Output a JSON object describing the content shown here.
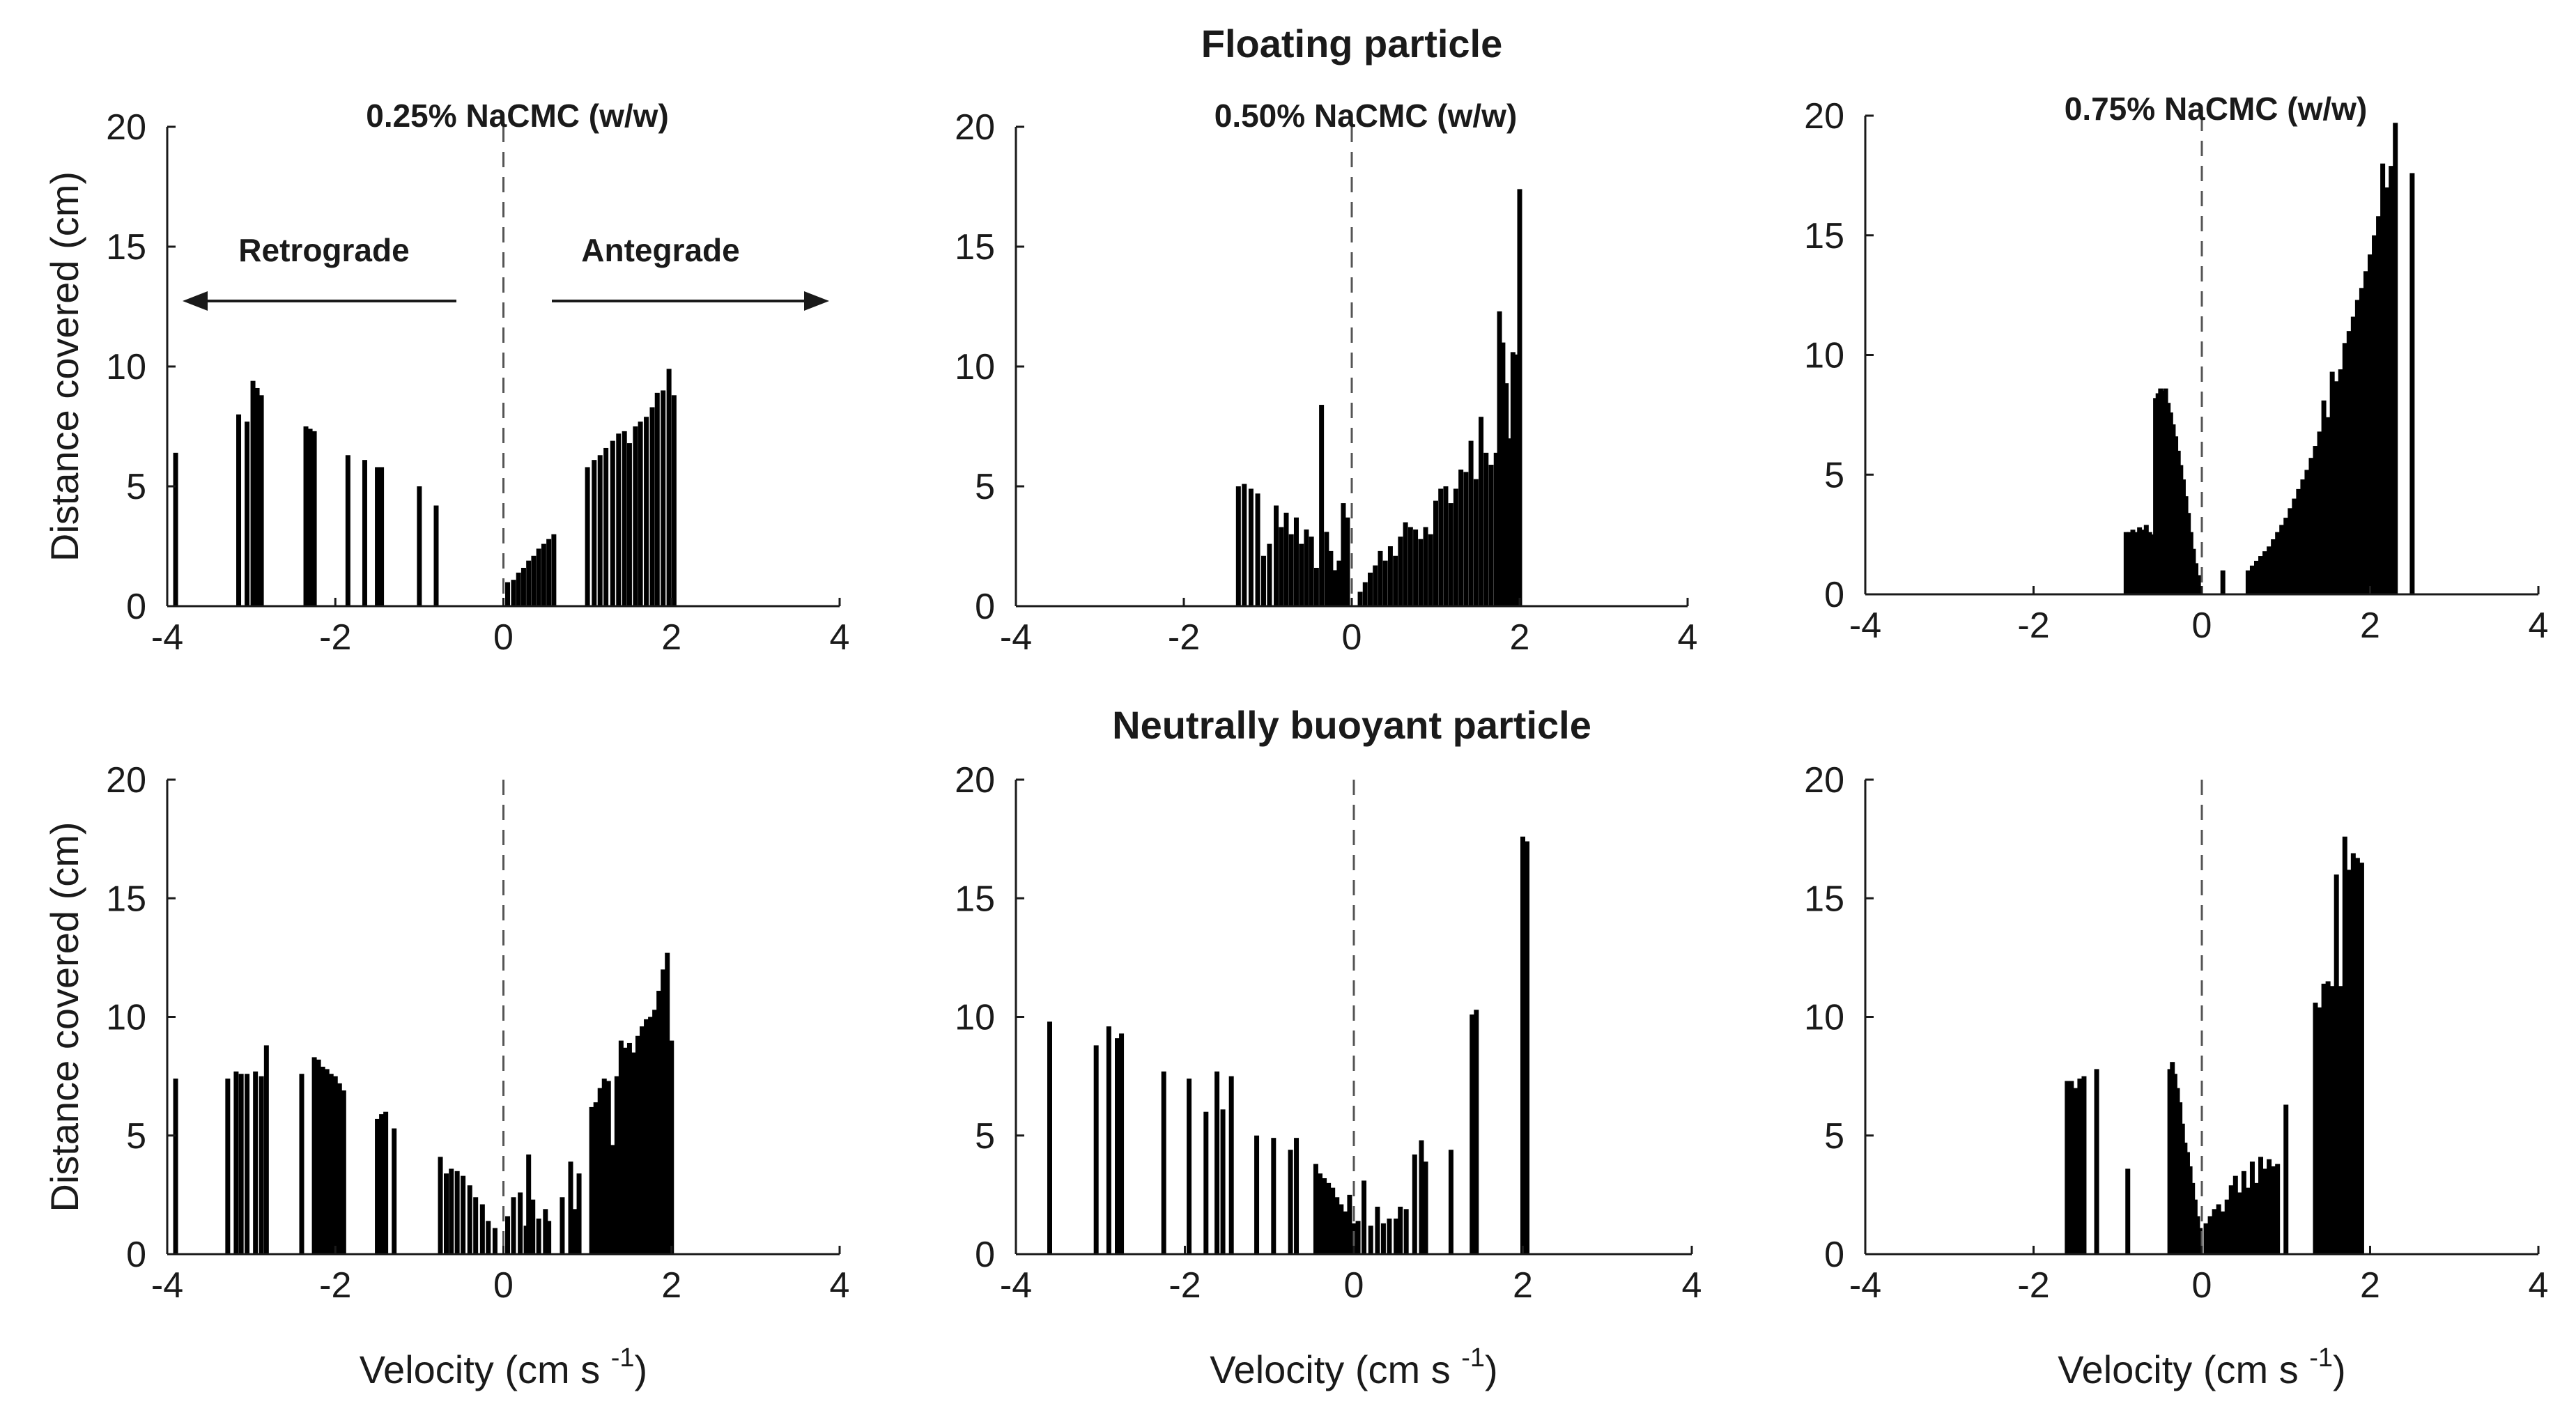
{
  "figure": {
    "row_titles": [
      "Floating particle",
      "Neutrally buoyant particle"
    ],
    "annotations": {
      "retrograde": "Retrograde",
      "antegrade": "Antegrade"
    },
    "xlabel_main": "Velocity (cm s",
    "xlabel_sup": "-1",
    "xlabel_close": ")",
    "colors": {
      "bar": "#000000",
      "axis": "#1a1a1a",
      "zero_line": "#555555"
    }
  },
  "chart_data": [
    {
      "type": "bar",
      "panel": "top-left",
      "title": "0.25% NaCMC (w/w)",
      "xlabel": "",
      "ylabel": "Distance covered (cm)",
      "xlim": [
        -4,
        4
      ],
      "ylim": [
        0,
        20
      ],
      "xticks": [
        -4,
        -2,
        0,
        2,
        4
      ],
      "yticks": [
        0,
        5,
        10,
        15,
        20
      ],
      "x": [
        -3.9,
        -3.15,
        -3.05,
        -2.98,
        -2.93,
        -2.88,
        -2.35,
        -2.3,
        -2.25,
        -1.85,
        -1.65,
        -1.5,
        -1.45,
        -1.0,
        -0.8,
        0.05,
        0.12,
        0.18,
        0.24,
        0.3,
        0.36,
        0.42,
        0.48,
        0.54,
        0.6,
        1.0,
        1.08,
        1.15,
        1.22,
        1.3,
        1.37,
        1.44,
        1.5,
        1.57,
        1.63,
        1.7,
        1.77,
        1.83,
        1.9,
        1.97,
        2.03
      ],
      "values": [
        6.4,
        8.0,
        7.7,
        9.4,
        9.1,
        8.8,
        7.5,
        7.4,
        7.3,
        6.3,
        6.1,
        5.8,
        5.8,
        5.0,
        4.2,
        1.0,
        1.1,
        1.4,
        1.6,
        1.9,
        2.1,
        2.4,
        2.6,
        2.8,
        3.0,
        5.8,
        6.1,
        6.3,
        6.6,
        6.9,
        7.2,
        7.3,
        6.8,
        7.5,
        7.7,
        7.9,
        8.3,
        8.9,
        9.0,
        9.9,
        8.8
      ]
    },
    {
      "type": "bar",
      "panel": "top-middle",
      "title": "0.50% NaCMC (w/w)",
      "xlabel": "",
      "ylabel": "",
      "xlim": [
        -4,
        4
      ],
      "ylim": [
        0,
        20
      ],
      "xticks": [
        -4,
        -2,
        0,
        2,
        4
      ],
      "yticks": [
        0,
        5,
        10,
        15,
        20
      ],
      "x": [
        -1.35,
        -1.28,
        -1.2,
        -1.12,
        -1.05,
        -0.98,
        -0.9,
        -0.84,
        -0.78,
        -0.72,
        -0.66,
        -0.6,
        -0.54,
        -0.48,
        -0.42,
        -0.36,
        -0.3,
        -0.25,
        -0.2,
        -0.15,
        -0.1,
        -0.05,
        0.1,
        0.16,
        0.22,
        0.28,
        0.34,
        0.4,
        0.46,
        0.52,
        0.58,
        0.64,
        0.7,
        0.76,
        0.82,
        0.88,
        0.94,
        1.0,
        1.06,
        1.12,
        1.18,
        1.24,
        1.3,
        1.36,
        1.42,
        1.48,
        1.54,
        1.6,
        1.66,
        1.72,
        1.76,
        1.8,
        1.84,
        1.88,
        1.92,
        1.96,
        2.0
      ],
      "values": [
        5.0,
        5.1,
        4.9,
        4.7,
        2.1,
        2.6,
        4.2,
        3.3,
        3.9,
        3.0,
        3.7,
        2.6,
        3.2,
        2.9,
        1.6,
        8.4,
        3.1,
        2.3,
        1.5,
        1.9,
        4.3,
        3.7,
        0.6,
        1.0,
        1.4,
        1.7,
        2.3,
        1.9,
        2.5,
        2.1,
        2.9,
        3.5,
        3.3,
        3.2,
        2.8,
        3.3,
        3.0,
        4.4,
        4.9,
        5.0,
        4.3,
        4.9,
        5.7,
        5.6,
        6.9,
        5.3,
        7.9,
        6.4,
        5.9,
        6.4,
        12.3,
        11.0,
        9.3,
        7.0,
        10.6,
        10.5,
        17.4
      ]
    },
    {
      "type": "bar",
      "panel": "top-right",
      "title": "0.75% NaCMC (w/w)",
      "xlabel": "",
      "ylabel": "",
      "xlim": [
        -4,
        4
      ],
      "ylim": [
        0,
        20
      ],
      "xticks": [
        -4,
        -2,
        0,
        2,
        4
      ],
      "yticks": [
        0,
        5,
        10,
        15,
        20
      ],
      "x": [
        -0.9,
        -0.86,
        -0.82,
        -0.78,
        -0.74,
        -0.7,
        -0.66,
        -0.62,
        -0.58,
        -0.55,
        -0.52,
        -0.49,
        -0.46,
        -0.43,
        -0.4,
        -0.37,
        -0.34,
        -0.31,
        -0.28,
        -0.25,
        -0.22,
        -0.19,
        -0.16,
        -0.13,
        -0.1,
        -0.07,
        -0.04,
        0.25,
        0.55,
        0.6,
        0.65,
        0.7,
        0.75,
        0.8,
        0.85,
        0.9,
        0.95,
        1.0,
        1.05,
        1.1,
        1.15,
        1.2,
        1.25,
        1.3,
        1.35,
        1.4,
        1.45,
        1.5,
        1.55,
        1.6,
        1.65,
        1.7,
        1.75,
        1.8,
        1.85,
        1.9,
        1.95,
        2.0,
        2.05,
        2.1,
        2.15,
        2.2,
        2.25,
        2.3,
        2.5
      ],
      "values": [
        2.6,
        2.6,
        2.7,
        2.6,
        2.8,
        2.7,
        2.9,
        2.6,
        2.5,
        8.2,
        8.4,
        8.6,
        8.5,
        8.6,
        8.0,
        7.6,
        7.1,
        6.6,
        6.0,
        5.4,
        4.8,
        4.1,
        3.4,
        2.6,
        1.9,
        1.3,
        0.8,
        1.0,
        1.0,
        1.2,
        1.4,
        1.6,
        1.8,
        2.0,
        2.3,
        2.6,
        2.9,
        3.2,
        3.6,
        4.0,
        4.4,
        4.8,
        5.2,
        5.7,
        6.2,
        6.8,
        8.1,
        7.4,
        9.3,
        8.9,
        9.4,
        10.5,
        11.0,
        11.6,
        12.3,
        12.8,
        13.5,
        14.2,
        15.0,
        15.8,
        18.0,
        17.0,
        17.9,
        19.7,
        17.6
      ]
    },
    {
      "type": "bar",
      "panel": "bottom-left",
      "title": "",
      "xlabel": "Velocity (cm s-1)",
      "ylabel": "Distance covered (cm)",
      "xlim": [
        -4,
        4
      ],
      "ylim": [
        0,
        20
      ],
      "xticks": [
        -4,
        -2,
        0,
        2,
        4
      ],
      "yticks": [
        0,
        5,
        10,
        15,
        20
      ],
      "x": [
        -3.9,
        -3.28,
        -3.18,
        -3.12,
        -3.05,
        -2.95,
        -2.88,
        -2.82,
        -2.4,
        -2.25,
        -2.2,
        -2.15,
        -2.1,
        -2.05,
        -2.0,
        -1.95,
        -1.9,
        -1.5,
        -1.45,
        -1.4,
        -1.3,
        -0.75,
        -0.68,
        -0.62,
        -0.55,
        -0.48,
        -0.4,
        -0.33,
        -0.25,
        -0.18,
        -0.1,
        0.05,
        0.12,
        0.2,
        0.27,
        0.3,
        0.35,
        0.42,
        0.5,
        0.54,
        0.7,
        0.8,
        0.85,
        0.9,
        1.05,
        1.1,
        1.15,
        1.2,
        1.25,
        1.3,
        1.35,
        1.4,
        1.45,
        1.5,
        1.55,
        1.6,
        1.65,
        1.7,
        1.75,
        1.8,
        1.85,
        1.9,
        1.95,
        2.0
      ],
      "values": [
        7.4,
        7.4,
        7.7,
        7.6,
        7.6,
        7.7,
        7.5,
        8.8,
        7.6,
        8.3,
        8.2,
        7.9,
        7.8,
        7.6,
        7.5,
        7.2,
        6.9,
        5.7,
        5.9,
        6.0,
        5.3,
        4.1,
        3.4,
        3.6,
        3.5,
        3.3,
        2.9,
        2.4,
        2.1,
        1.4,
        1.1,
        1.6,
        2.4,
        2.6,
        1.2,
        4.2,
        2.3,
        1.5,
        1.9,
        1.4,
        2.4,
        3.9,
        1.9,
        3.4,
        6.2,
        6.4,
        7.0,
        7.4,
        7.3,
        4.6,
        7.5,
        9.0,
        8.7,
        8.9,
        8.5,
        9.2,
        9.6,
        9.9,
        10.0,
        10.3,
        11.1,
        12.0,
        12.7,
        9.0
      ]
    },
    {
      "type": "bar",
      "panel": "bottom-middle",
      "title": "",
      "xlabel": "Velocity (cm s-1)",
      "ylabel": "",
      "xlim": [
        -4,
        4
      ],
      "ylim": [
        0,
        20
      ],
      "xticks": [
        -4,
        -2,
        0,
        2,
        4
      ],
      "yticks": [
        0,
        5,
        10,
        15,
        20
      ],
      "x": [
        -3.6,
        -3.05,
        -2.9,
        -2.8,
        -2.75,
        -2.25,
        -1.95,
        -1.75,
        -1.62,
        -1.55,
        -1.45,
        -1.15,
        -0.95,
        -0.75,
        -0.68,
        -0.45,
        -0.4,
        -0.35,
        -0.3,
        -0.25,
        -0.2,
        -0.15,
        -0.1,
        -0.05,
        0.0,
        0.05,
        0.12,
        0.2,
        0.28,
        0.35,
        0.42,
        0.5,
        0.55,
        0.62,
        0.72,
        0.8,
        0.85,
        1.15,
        1.4,
        1.45,
        2.0,
        2.05
      ],
      "values": [
        9.8,
        8.8,
        9.6,
        9.1,
        9.3,
        7.7,
        7.4,
        6.0,
        7.7,
        6.1,
        7.5,
        5.0,
        4.9,
        4.4,
        4.9,
        3.8,
        3.4,
        3.2,
        3.0,
        2.8,
        2.4,
        2.1,
        1.8,
        2.5,
        1.3,
        1.4,
        3.1,
        1.2,
        2.0,
        1.3,
        1.5,
        1.5,
        2.0,
        1.9,
        4.2,
        4.8,
        3.9,
        4.4,
        10.1,
        10.3,
        17.6,
        17.4
      ]
    },
    {
      "type": "bar",
      "panel": "bottom-right",
      "title": "",
      "xlabel": "Velocity (cm s-1)",
      "ylabel": "",
      "xlim": [
        -4,
        4
      ],
      "ylim": [
        0,
        20
      ],
      "xticks": [
        -4,
        -2,
        0,
        2,
        4
      ],
      "yticks": [
        0,
        5,
        10,
        15,
        20
      ],
      "x": [
        -1.6,
        -1.55,
        -1.5,
        -1.45,
        -1.4,
        -1.25,
        -0.88,
        -0.38,
        -0.35,
        -0.32,
        -0.29,
        -0.26,
        -0.23,
        -0.2,
        -0.17,
        -0.14,
        -0.11,
        -0.08,
        -0.05,
        -0.02,
        0.05,
        0.1,
        0.15,
        0.2,
        0.25,
        0.3,
        0.35,
        0.4,
        0.45,
        0.5,
        0.55,
        0.6,
        0.65,
        0.7,
        0.75,
        0.8,
        0.85,
        0.9,
        1.0,
        1.35,
        1.4,
        1.45,
        1.5,
        1.55,
        1.6,
        1.65,
        1.7,
        1.75,
        1.8,
        1.85,
        1.9
      ],
      "values": [
        7.3,
        7.3,
        7.0,
        7.4,
        7.5,
        7.8,
        3.6,
        7.8,
        8.1,
        7.6,
        7.0,
        6.4,
        5.5,
        4.7,
        4.3,
        3.7,
        3.0,
        2.3,
        1.6,
        1.1,
        1.3,
        1.6,
        1.9,
        2.1,
        1.8,
        2.3,
        2.9,
        3.3,
        2.6,
        3.5,
        2.8,
        3.9,
        3.0,
        4.1,
        3.6,
        4.0,
        3.7,
        3.8,
        6.3,
        10.6,
        10.4,
        11.4,
        11.5,
        11.3,
        16.0,
        11.3,
        17.6,
        16.2,
        16.9,
        16.7,
        16.5
      ]
    }
  ]
}
